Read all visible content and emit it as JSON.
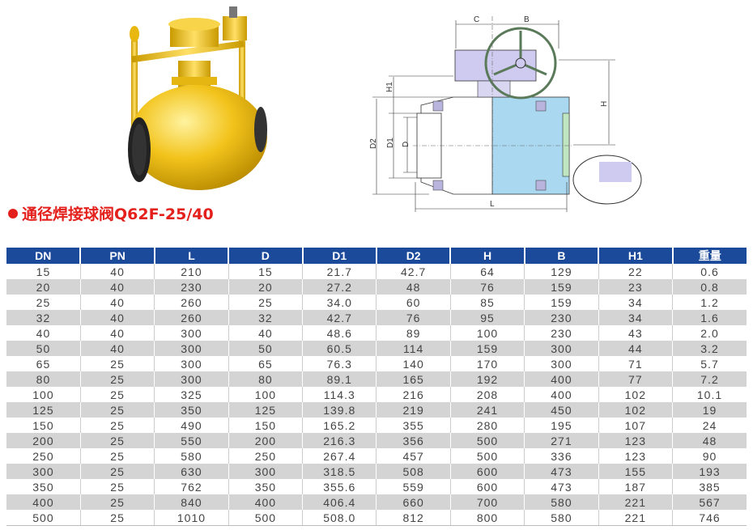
{
  "title": "通径焊接球阀Q62F-25/40",
  "drawing_labels": {
    "C": "C",
    "B": "B",
    "H1": "H1",
    "H": "H",
    "D2": "D2",
    "D1": "D1",
    "D": "D",
    "L": "L"
  },
  "table": {
    "headers": [
      "DN",
      "PN",
      "L",
      "D",
      "D1",
      "D2",
      "H",
      "B",
      "H1",
      "重量"
    ],
    "rows": [
      [
        "15",
        "40",
        "210",
        "15",
        "21.7",
        "42.7",
        "64",
        "129",
        "22",
        "0.6"
      ],
      [
        "20",
        "40",
        "230",
        "20",
        "27.2",
        "48",
        "76",
        "159",
        "23",
        "0.8"
      ],
      [
        "25",
        "40",
        "260",
        "25",
        "34.0",
        "60",
        "85",
        "159",
        "34",
        "1.2"
      ],
      [
        "32",
        "40",
        "260",
        "32",
        "42.7",
        "76",
        "95",
        "230",
        "34",
        "1.6"
      ],
      [
        "40",
        "40",
        "300",
        "40",
        "48.6",
        "89",
        "100",
        "230",
        "43",
        "2.0"
      ],
      [
        "50",
        "40",
        "300",
        "50",
        "60.5",
        "114",
        "159",
        "300",
        "44",
        "3.2"
      ],
      [
        "65",
        "25",
        "300",
        "65",
        "76.3",
        "140",
        "170",
        "300",
        "71",
        "5.7"
      ],
      [
        "80",
        "25",
        "300",
        "80",
        "89.1",
        "165",
        "192",
        "400",
        "77",
        "7.2"
      ],
      [
        "100",
        "25",
        "325",
        "100",
        "114.3",
        "216",
        "208",
        "400",
        "102",
        "10.1"
      ],
      [
        "125",
        "25",
        "350",
        "125",
        "139.8",
        "219",
        "241",
        "450",
        "102",
        "19"
      ],
      [
        "150",
        "25",
        "490",
        "150",
        "165.2",
        "355",
        "280",
        "195",
        "107",
        "24"
      ],
      [
        "200",
        "25",
        "550",
        "200",
        "216.3",
        "356",
        "500",
        "271",
        "123",
        "48"
      ],
      [
        "250",
        "25",
        "580",
        "250",
        "267.4",
        "457",
        "500",
        "336",
        "123",
        "90"
      ],
      [
        "300",
        "25",
        "630",
        "300",
        "318.5",
        "508",
        "600",
        "473",
        "155",
        "193"
      ],
      [
        "350",
        "25",
        "762",
        "350",
        "355.6",
        "559",
        "600",
        "473",
        "187",
        "385"
      ],
      [
        "400",
        "25",
        "840",
        "400",
        "406.4",
        "660",
        "700",
        "580",
        "221",
        "567"
      ],
      [
        "500",
        "25",
        "1010",
        "500",
        "508.0",
        "812",
        "800",
        "580",
        "221",
        "746"
      ]
    ]
  },
  "colors": {
    "header": "#1b4a9b",
    "title": "#e3201b",
    "stripe": "#d4d4d4",
    "valve_body": "#f2c31b"
  }
}
